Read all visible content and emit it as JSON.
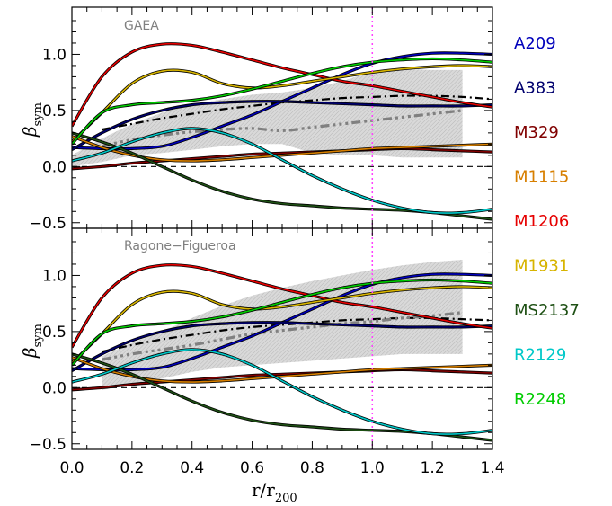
{
  "chart_data": [
    {
      "type": "line",
      "title": "GAEA",
      "xlabel": "r/r",
      "xlabel_sub": "200",
      "ylabel": "β",
      "ylabel_sub": "sym",
      "xlim": [
        0.0,
        1.4
      ],
      "ylim": [
        -0.55,
        1.42
      ],
      "xticks": [
        "0.0",
        "0.2",
        "0.4",
        "0.6",
        "0.8",
        "1.0",
        "1.2",
        "1.4"
      ],
      "yticks": [
        "−0.5",
        "0.0",
        "0.5",
        "1.0"
      ],
      "ytick_values": [
        -0.5,
        0.0,
        0.5,
        1.0
      ],
      "reference_lines": {
        "hline_dashed": 0.0,
        "vline_dotted": 1.0
      },
      "band": {
        "x": [
          0.0,
          0.1,
          0.2,
          0.3,
          0.4,
          0.5,
          0.6,
          0.7,
          0.8,
          0.9,
          1.0,
          1.1,
          1.2,
          1.3
        ],
        "upper": [
          0.1,
          0.25,
          0.38,
          0.48,
          0.55,
          0.6,
          0.64,
          0.66,
          0.7,
          0.76,
          0.85,
          0.87,
          0.86,
          0.86
        ],
        "lower": [
          0.0,
          0.04,
          0.1,
          0.12,
          0.15,
          0.18,
          0.2,
          0.2,
          0.12,
          0.1,
          0.1,
          0.08,
          0.08,
          0.08
        ]
      },
      "median_models": [
        {
          "style": "dash-dot-black",
          "x": [
            0.1,
            0.2,
            0.3,
            0.4,
            0.5,
            0.6,
            0.7,
            0.8,
            0.9,
            1.0,
            1.1,
            1.2,
            1.3,
            1.4
          ],
          "y": [
            0.33,
            0.38,
            0.43,
            0.47,
            0.51,
            0.54,
            0.57,
            0.59,
            0.61,
            0.62,
            0.63,
            0.63,
            0.62,
            0.6
          ]
        },
        {
          "style": "dash-dot-grey",
          "x": [
            0.1,
            0.2,
            0.3,
            0.4,
            0.5,
            0.6,
            0.7,
            0.8,
            0.9,
            1.0,
            1.1,
            1.2,
            1.3
          ],
          "y": [
            0.18,
            0.24,
            0.28,
            0.31,
            0.33,
            0.34,
            0.32,
            0.35,
            0.38,
            0.41,
            0.44,
            0.47,
            0.5
          ]
        }
      ],
      "series": [
        {
          "name": "A209",
          "color": "#0000bb",
          "x": [
            0.0,
            0.1,
            0.2,
            0.3,
            0.4,
            0.5,
            0.6,
            0.7,
            0.8,
            0.9,
            1.0,
            1.1,
            1.2,
            1.3,
            1.4
          ],
          "y": [
            0.17,
            0.16,
            0.16,
            0.18,
            0.26,
            0.36,
            0.46,
            0.58,
            0.7,
            0.82,
            0.92,
            0.98,
            1.01,
            1.01,
            1.0
          ]
        },
        {
          "name": "A383",
          "color": "#00006e",
          "x": [
            0.0,
            0.1,
            0.2,
            0.3,
            0.4,
            0.5,
            0.6,
            0.7,
            0.8,
            0.9,
            1.0,
            1.1,
            1.2,
            1.3,
            1.4
          ],
          "y": [
            0.15,
            0.3,
            0.42,
            0.5,
            0.55,
            0.57,
            0.58,
            0.58,
            0.57,
            0.56,
            0.55,
            0.54,
            0.54,
            0.54,
            0.55
          ]
        },
        {
          "name": "M329",
          "color": "#800000",
          "x": [
            0.0,
            0.1,
            0.2,
            0.3,
            0.4,
            0.5,
            0.6,
            0.7,
            0.8,
            0.9,
            1.0,
            1.1,
            1.2,
            1.3,
            1.4
          ],
          "y": [
            -0.02,
            0.0,
            0.03,
            0.05,
            0.07,
            0.09,
            0.11,
            0.12,
            0.13,
            0.14,
            0.15,
            0.16,
            0.15,
            0.14,
            0.13
          ]
        },
        {
          "name": "M1115",
          "color": "#d77f00",
          "x": [
            0.0,
            0.1,
            0.2,
            0.3,
            0.4,
            0.5,
            0.6,
            0.7,
            0.8,
            0.9,
            1.0,
            1.1,
            1.2,
            1.3,
            1.4
          ],
          "y": [
            0.27,
            0.17,
            0.1,
            0.06,
            0.05,
            0.06,
            0.08,
            0.1,
            0.12,
            0.14,
            0.16,
            0.17,
            0.18,
            0.19,
            0.2
          ]
        },
        {
          "name": "M1206",
          "color": "#e60000",
          "x": [
            0.0,
            0.1,
            0.2,
            0.3,
            0.4,
            0.5,
            0.6,
            0.7,
            0.8,
            0.9,
            1.0,
            1.1,
            1.2,
            1.3,
            1.4
          ],
          "y": [
            0.36,
            0.8,
            1.02,
            1.09,
            1.08,
            1.02,
            0.95,
            0.88,
            0.82,
            0.76,
            0.72,
            0.67,
            0.62,
            0.57,
            0.53
          ]
        },
        {
          "name": "M1931",
          "color": "#d7b400",
          "x": [
            0.0,
            0.1,
            0.2,
            0.3,
            0.4,
            0.5,
            0.6,
            0.7,
            0.8,
            0.9,
            1.0,
            1.1,
            1.2,
            1.3,
            1.4
          ],
          "y": [
            0.22,
            0.48,
            0.74,
            0.85,
            0.84,
            0.74,
            0.7,
            0.72,
            0.76,
            0.8,
            0.84,
            0.87,
            0.89,
            0.9,
            0.89
          ]
        },
        {
          "name": "MS2137",
          "color": "#1e5014",
          "x": [
            0.0,
            0.1,
            0.2,
            0.3,
            0.4,
            0.5,
            0.6,
            0.7,
            0.8,
            0.9,
            1.0,
            1.1,
            1.2,
            1.3,
            1.4
          ],
          "y": [
            0.3,
            0.22,
            0.12,
            0.0,
            -0.12,
            -0.22,
            -0.29,
            -0.33,
            -0.35,
            -0.37,
            -0.38,
            -0.39,
            -0.41,
            -0.44,
            -0.47
          ]
        },
        {
          "name": "R2129",
          "color": "#00c8c8",
          "x": [
            0.0,
            0.1,
            0.2,
            0.3,
            0.4,
            0.5,
            0.6,
            0.7,
            0.8,
            0.9,
            1.0,
            1.1,
            1.2,
            1.3,
            1.4
          ],
          "y": [
            0.05,
            0.12,
            0.22,
            0.3,
            0.34,
            0.3,
            0.2,
            0.06,
            -0.08,
            -0.2,
            -0.3,
            -0.37,
            -0.41,
            -0.41,
            -0.38
          ]
        },
        {
          "name": "R2248",
          "color": "#00cc00",
          "x": [
            0.0,
            0.1,
            0.2,
            0.3,
            0.4,
            0.5,
            0.6,
            0.7,
            0.8,
            0.9,
            1.0,
            1.1,
            1.2,
            1.3,
            1.4
          ],
          "y": [
            0.2,
            0.48,
            0.55,
            0.57,
            0.59,
            0.63,
            0.69,
            0.76,
            0.83,
            0.89,
            0.93,
            0.95,
            0.96,
            0.95,
            0.93
          ]
        }
      ]
    },
    {
      "type": "line",
      "title": "Ragone−Figueroa",
      "xlabel": "r/r",
      "xlabel_sub": "200",
      "ylabel": "β",
      "ylabel_sub": "sym",
      "xlim": [
        0.0,
        1.4
      ],
      "ylim": [
        -0.55,
        1.42
      ],
      "xticks": [
        "0.0",
        "0.2",
        "0.4",
        "0.6",
        "0.8",
        "1.0",
        "1.2",
        "1.4"
      ],
      "yticks": [
        "−0.5",
        "0.0",
        "0.5",
        "1.0"
      ],
      "ytick_values": [
        -0.5,
        0.0,
        0.5,
        1.0
      ],
      "reference_lines": {
        "hline_dashed": 0.0,
        "vline_dotted": 1.0
      },
      "band": {
        "x": [
          0.1,
          0.2,
          0.3,
          0.4,
          0.5,
          0.6,
          0.7,
          0.8,
          0.9,
          1.0,
          1.1,
          1.2,
          1.3
        ],
        "upper": [
          0.28,
          0.4,
          0.5,
          0.62,
          0.73,
          0.82,
          0.89,
          0.95,
          1.0,
          1.05,
          1.09,
          1.12,
          1.14
        ],
        "lower": [
          -0.02,
          0.02,
          0.08,
          0.14,
          0.18,
          0.2,
          0.22,
          0.24,
          0.26,
          0.28,
          0.3,
          0.3,
          0.3
        ]
      },
      "median_models": [
        {
          "style": "dash-dot-black",
          "x": [
            0.1,
            0.2,
            0.3,
            0.4,
            0.5,
            0.6,
            0.7,
            0.8,
            0.9,
            1.0,
            1.1,
            1.2,
            1.3,
            1.4
          ],
          "y": [
            0.32,
            0.38,
            0.43,
            0.47,
            0.51,
            0.54,
            0.56,
            0.58,
            0.6,
            0.61,
            0.62,
            0.62,
            0.61,
            0.6
          ]
        },
        {
          "style": "dash-dot-grey",
          "x": [
            0.1,
            0.2,
            0.3,
            0.4,
            0.5,
            0.6,
            0.7,
            0.8,
            0.9,
            1.0,
            1.1,
            1.2,
            1.3
          ],
          "y": [
            0.25,
            0.3,
            0.34,
            0.38,
            0.43,
            0.48,
            0.51,
            0.54,
            0.57,
            0.59,
            0.62,
            0.64,
            0.67
          ]
        }
      ],
      "series": [
        {
          "name": "A209",
          "color": "#0000bb",
          "x": [
            0.0,
            0.1,
            0.2,
            0.3,
            0.4,
            0.5,
            0.6,
            0.7,
            0.8,
            0.9,
            1.0,
            1.1,
            1.2,
            1.3,
            1.4
          ],
          "y": [
            0.17,
            0.16,
            0.16,
            0.18,
            0.26,
            0.36,
            0.46,
            0.58,
            0.7,
            0.82,
            0.92,
            0.98,
            1.01,
            1.01,
            1.0
          ]
        },
        {
          "name": "A383",
          "color": "#00006e",
          "x": [
            0.0,
            0.1,
            0.2,
            0.3,
            0.4,
            0.5,
            0.6,
            0.7,
            0.8,
            0.9,
            1.0,
            1.1,
            1.2,
            1.3,
            1.4
          ],
          "y": [
            0.15,
            0.3,
            0.42,
            0.5,
            0.55,
            0.57,
            0.58,
            0.58,
            0.57,
            0.56,
            0.55,
            0.54,
            0.54,
            0.54,
            0.55
          ]
        },
        {
          "name": "M329",
          "color": "#800000",
          "x": [
            0.0,
            0.1,
            0.2,
            0.3,
            0.4,
            0.5,
            0.6,
            0.7,
            0.8,
            0.9,
            1.0,
            1.1,
            1.2,
            1.3,
            1.4
          ],
          "y": [
            -0.02,
            0.0,
            0.03,
            0.05,
            0.07,
            0.09,
            0.11,
            0.12,
            0.13,
            0.14,
            0.15,
            0.16,
            0.15,
            0.14,
            0.13
          ]
        },
        {
          "name": "M1115",
          "color": "#d77f00",
          "x": [
            0.0,
            0.1,
            0.2,
            0.3,
            0.4,
            0.5,
            0.6,
            0.7,
            0.8,
            0.9,
            1.0,
            1.1,
            1.2,
            1.3,
            1.4
          ],
          "y": [
            0.27,
            0.17,
            0.1,
            0.06,
            0.05,
            0.06,
            0.08,
            0.1,
            0.12,
            0.14,
            0.16,
            0.17,
            0.18,
            0.19,
            0.2
          ]
        },
        {
          "name": "M1206",
          "color": "#e60000",
          "x": [
            0.0,
            0.1,
            0.2,
            0.3,
            0.4,
            0.5,
            0.6,
            0.7,
            0.8,
            0.9,
            1.0,
            1.1,
            1.2,
            1.3,
            1.4
          ],
          "y": [
            0.36,
            0.8,
            1.02,
            1.09,
            1.08,
            1.02,
            0.95,
            0.88,
            0.82,
            0.76,
            0.72,
            0.67,
            0.62,
            0.57,
            0.53
          ]
        },
        {
          "name": "M1931",
          "color": "#d7b400",
          "x": [
            0.0,
            0.1,
            0.2,
            0.3,
            0.4,
            0.5,
            0.6,
            0.7,
            0.8,
            0.9,
            1.0,
            1.1,
            1.2,
            1.3,
            1.4
          ],
          "y": [
            0.22,
            0.48,
            0.74,
            0.85,
            0.84,
            0.74,
            0.7,
            0.72,
            0.76,
            0.8,
            0.84,
            0.87,
            0.89,
            0.9,
            0.89
          ]
        },
        {
          "name": "MS2137",
          "color": "#1e5014",
          "x": [
            0.0,
            0.1,
            0.2,
            0.3,
            0.4,
            0.5,
            0.6,
            0.7,
            0.8,
            0.9,
            1.0,
            1.1,
            1.2,
            1.3,
            1.4
          ],
          "y": [
            0.3,
            0.22,
            0.12,
            0.0,
            -0.12,
            -0.22,
            -0.29,
            -0.33,
            -0.35,
            -0.37,
            -0.38,
            -0.39,
            -0.41,
            -0.44,
            -0.47
          ]
        },
        {
          "name": "R2129",
          "color": "#00c8c8",
          "x": [
            0.0,
            0.1,
            0.2,
            0.3,
            0.4,
            0.5,
            0.6,
            0.7,
            0.8,
            0.9,
            1.0,
            1.1,
            1.2,
            1.3,
            1.4
          ],
          "y": [
            0.05,
            0.12,
            0.22,
            0.3,
            0.34,
            0.3,
            0.2,
            0.06,
            -0.08,
            -0.2,
            -0.3,
            -0.37,
            -0.41,
            -0.41,
            -0.38
          ]
        },
        {
          "name": "R2248",
          "color": "#00cc00",
          "x": [
            0.0,
            0.1,
            0.2,
            0.3,
            0.4,
            0.5,
            0.6,
            0.7,
            0.8,
            0.9,
            1.0,
            1.1,
            1.2,
            1.3,
            1.4
          ],
          "y": [
            0.2,
            0.48,
            0.55,
            0.57,
            0.59,
            0.63,
            0.69,
            0.76,
            0.83,
            0.89,
            0.93,
            0.95,
            0.96,
            0.95,
            0.93
          ]
        }
      ]
    }
  ],
  "legend": {
    "placement": "right",
    "items": [
      {
        "label": "A209",
        "color": "#0000bb"
      },
      {
        "label": "A383",
        "color": "#00006e"
      },
      {
        "label": "M329",
        "color": "#800000"
      },
      {
        "label": "M1115",
        "color": "#d77f00"
      },
      {
        "label": "M1206",
        "color": "#e60000"
      },
      {
        "label": "M1931",
        "color": "#d7b400"
      },
      {
        "label": "MS2137",
        "color": "#1e5014"
      },
      {
        "label": "R2129",
        "color": "#00c8c8"
      },
      {
        "label": "R2248",
        "color": "#00cc00"
      }
    ]
  }
}
